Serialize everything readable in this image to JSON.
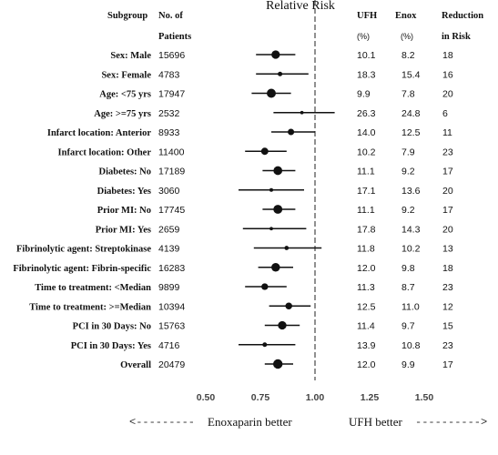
{
  "chart_data": {
    "type": "forest",
    "title": "Relative Risk",
    "headers": {
      "subgroup": "Subgroup",
      "patients_line1": "No. of",
      "patients_line2": "Patients",
      "ufh_line1": "UFH",
      "ufh_line2": "(%)",
      "enox_line1": "Enox",
      "enox_line2": "(%)",
      "reduction_line1": "Reduction",
      "reduction_line2": "in Risk"
    },
    "xticks": [
      "0.50",
      "0.75",
      "1.00",
      "1.25",
      "1.50"
    ],
    "xtick_values": [
      0.5,
      0.75,
      1.0,
      1.25,
      1.5
    ],
    "xlim": [
      0.5,
      1.5
    ],
    "reference_line": 1.0,
    "footer_left": "Enoxaparin better",
    "footer_right": "UFH  better",
    "arrow_left": "<---------",
    "arrow_right": "---------->",
    "rows": [
      {
        "subgroup": "Sex: Male",
        "patients": "15696",
        "ufh": "10.1",
        "enox": "8.2",
        "reduction": "18",
        "rr": 0.82,
        "lo": 0.73,
        "hi": 0.91
      },
      {
        "subgroup": "Sex: Female",
        "patients": "4783",
        "ufh": "18.3",
        "enox": "15.4",
        "reduction": "16",
        "rr": 0.84,
        "lo": 0.73,
        "hi": 0.97
      },
      {
        "subgroup": "Age: <75 yrs",
        "patients": "17947",
        "ufh": "9.9",
        "enox": "7.8",
        "reduction": "20",
        "rr": 0.8,
        "lo": 0.71,
        "hi": 0.89
      },
      {
        "subgroup": "Age: >=75 yrs",
        "patients": "2532",
        "ufh": "26.3",
        "enox": "24.8",
        "reduction": "6",
        "rr": 0.94,
        "lo": 0.81,
        "hi": 1.09
      },
      {
        "subgroup": "Infarct location: Anterior",
        "patients": "8933",
        "ufh": "14.0",
        "enox": "12.5",
        "reduction": "11",
        "rr": 0.89,
        "lo": 0.8,
        "hi": 1.0
      },
      {
        "subgroup": "Infarct location: Other",
        "patients": "11400",
        "ufh": "10.2",
        "enox": "7.9",
        "reduction": "23",
        "rr": 0.77,
        "lo": 0.68,
        "hi": 0.87
      },
      {
        "subgroup": "Diabetes: No",
        "patients": "17189",
        "ufh": "11.1",
        "enox": "9.2",
        "reduction": "17",
        "rr": 0.83,
        "lo": 0.76,
        "hi": 0.91
      },
      {
        "subgroup": "Diabetes: Yes",
        "patients": "3060",
        "ufh": "17.1",
        "enox": "13.6",
        "reduction": "20",
        "rr": 0.8,
        "lo": 0.65,
        "hi": 0.95
      },
      {
        "subgroup": "Prior MI: No",
        "patients": "17745",
        "ufh": "11.1",
        "enox": "9.2",
        "reduction": "17",
        "rr": 0.83,
        "lo": 0.76,
        "hi": 0.91
      },
      {
        "subgroup": "Prior MI: Yes",
        "patients": "2659",
        "ufh": "17.8",
        "enox": "14.3",
        "reduction": "20",
        "rr": 0.8,
        "lo": 0.67,
        "hi": 0.96
      },
      {
        "subgroup": "Fibrinolytic agent: Streptokinase",
        "patients": "4139",
        "ufh": "11.8",
        "enox": "10.2",
        "reduction": "13",
        "rr": 0.87,
        "lo": 0.72,
        "hi": 1.03
      },
      {
        "subgroup": "Fibrinolytic agent: Fibrin-specific",
        "patients": "16283",
        "ufh": "12.0",
        "enox": "9.8",
        "reduction": "18",
        "rr": 0.82,
        "lo": 0.74,
        "hi": 0.9
      },
      {
        "subgroup": "Time to treatment: <Median",
        "patients": "9899",
        "ufh": "11.3",
        "enox": "8.7",
        "reduction": "23",
        "rr": 0.77,
        "lo": 0.68,
        "hi": 0.87
      },
      {
        "subgroup": "Time to treatment: >=Median",
        "patients": "10394",
        "ufh": "12.5",
        "enox": "11.0",
        "reduction": "12",
        "rr": 0.88,
        "lo": 0.79,
        "hi": 0.98
      },
      {
        "subgroup": "PCI in 30 Days: No",
        "patients": "15763",
        "ufh": "11.4",
        "enox": "9.7",
        "reduction": "15",
        "rr": 0.85,
        "lo": 0.77,
        "hi": 0.93
      },
      {
        "subgroup": "PCI in 30 Days: Yes",
        "patients": "4716",
        "ufh": "13.9",
        "enox": "10.8",
        "reduction": "23",
        "rr": 0.77,
        "lo": 0.65,
        "hi": 0.91
      },
      {
        "subgroup": "Overall",
        "patients": "20479",
        "ufh": "12.0",
        "enox": "9.9",
        "reduction": "17",
        "rr": 0.83,
        "lo": 0.77,
        "hi": 0.9
      }
    ]
  }
}
